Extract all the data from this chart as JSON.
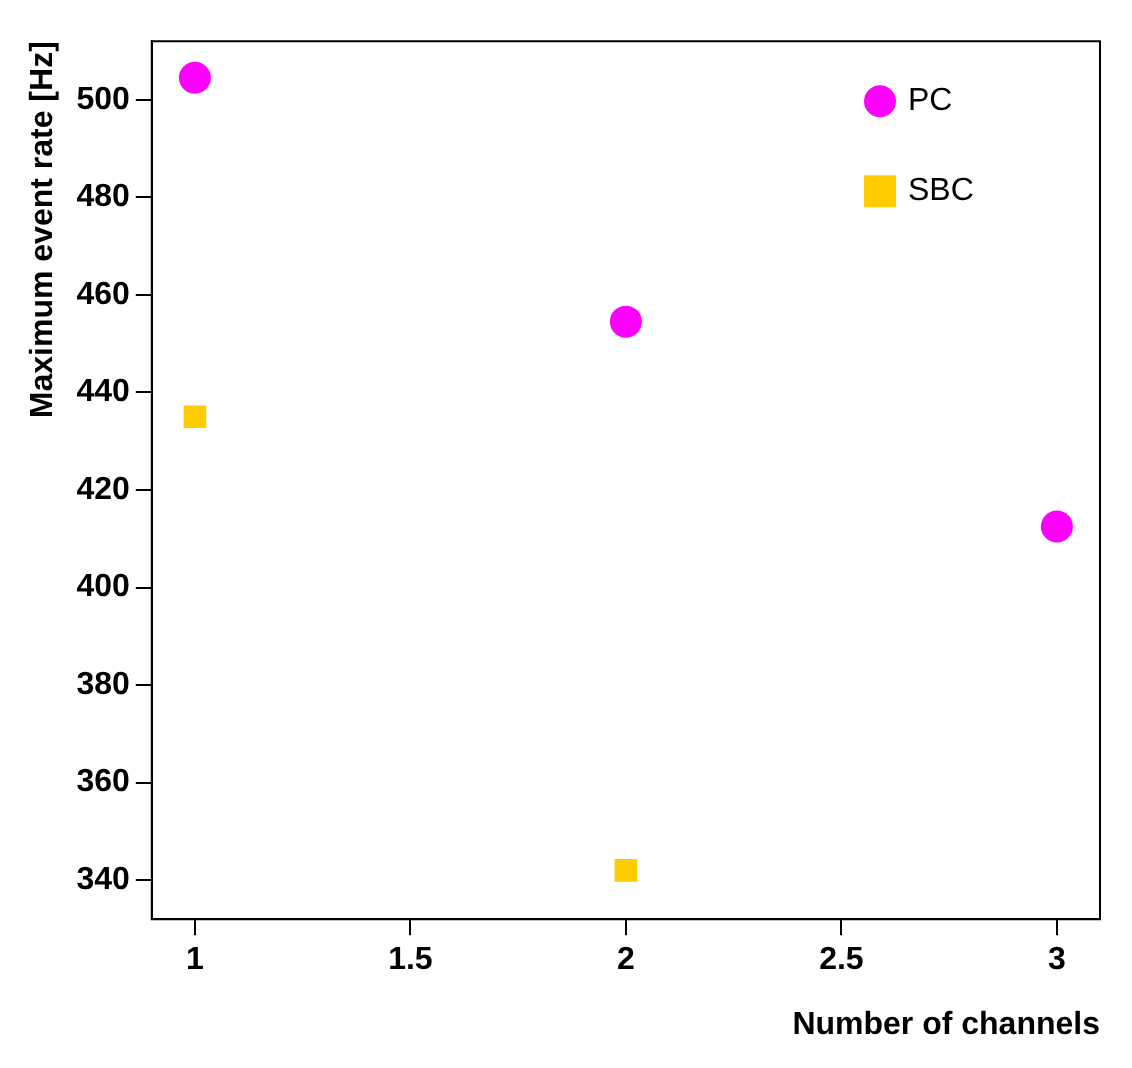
{
  "chart_data": {
    "type": "scatter",
    "xlabel": "Number of channels",
    "ylabel": "Maximum event rate [Hz]",
    "series": [
      {
        "name": "PC",
        "color": "#ff00ff",
        "marker": "circle",
        "x": [
          1,
          2,
          3
        ],
        "values": [
          504.5,
          454.5,
          412.5
        ]
      },
      {
        "name": "SBC",
        "color": "#ffcc00",
        "marker": "square",
        "x": [
          1,
          2
        ],
        "values": [
          435,
          342
        ]
      }
    ],
    "xlim": [
      0.9,
      3.1
    ],
    "xticks": [
      1,
      1.5,
      2,
      2.5,
      3
    ],
    "ylim": [
      332,
      512
    ],
    "yticks": [
      340,
      360,
      380,
      400,
      420,
      440,
      460,
      480,
      500
    ],
    "grid": false,
    "legend": "top right"
  }
}
